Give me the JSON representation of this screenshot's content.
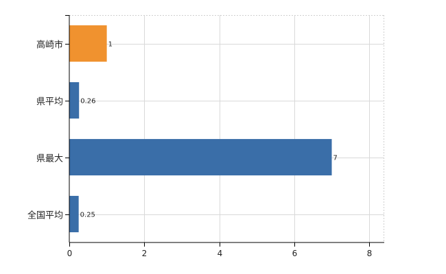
{
  "chart_data": {
    "type": "bar",
    "orientation": "horizontal",
    "categories": [
      "高崎市",
      "県平均",
      "県最大",
      "全国平均"
    ],
    "values": [
      1,
      0.26,
      7,
      0.25
    ],
    "data_labels": [
      "1",
      "0.26",
      "7",
      "0.25"
    ],
    "bar_colors": [
      "#f0922f",
      "#3a6ea8",
      "#3a6ea8",
      "#3a6ea8"
    ],
    "xlim": [
      0,
      8.4
    ],
    "x_ticks": [
      0,
      2,
      4,
      6,
      8
    ],
    "grid": true,
    "title": "",
    "xlabel": "",
    "ylabel": ""
  }
}
